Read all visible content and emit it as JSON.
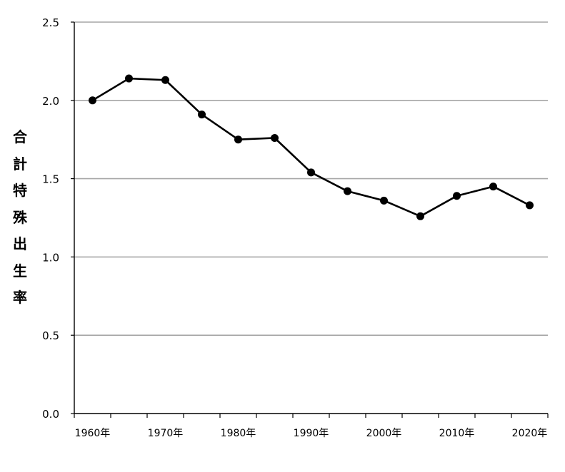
{
  "chart_data": {
    "type": "line",
    "title": "",
    "xlabel": "",
    "ylabel": "合計特殊出生率",
    "x": [
      1960,
      1965,
      1970,
      1975,
      1980,
      1985,
      1990,
      1995,
      2000,
      2005,
      2010,
      2015,
      2020
    ],
    "series": [
      {
        "values": [
          2.0,
          2.14,
          2.13,
          1.91,
          1.75,
          1.76,
          1.54,
          1.42,
          1.36,
          1.26,
          1.39,
          1.45,
          1.33
        ]
      }
    ],
    "x_tick_labels": [
      "1960年",
      "1970年",
      "1980年",
      "1990年",
      "2000年",
      "2010年",
      "2020年"
    ],
    "y_tick_labels": [
      "0.0",
      "0.5",
      "1.0",
      "1.5",
      "2.0",
      "2.5"
    ],
    "ylim": [
      0,
      2.5
    ],
    "grid": true,
    "legend": "none",
    "colors": {
      "line": "#000000",
      "grid": "#a6a6a6",
      "axis": "#000000"
    }
  }
}
